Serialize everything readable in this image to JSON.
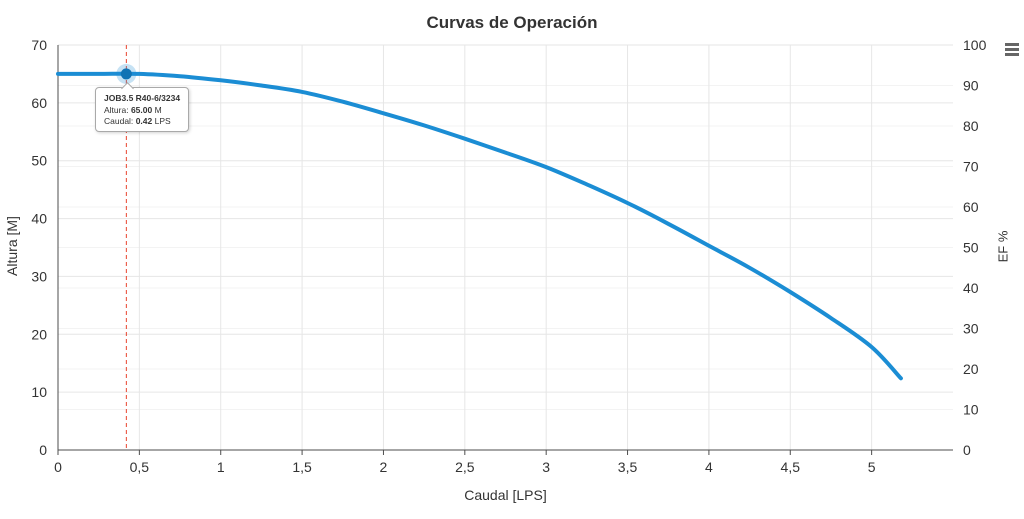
{
  "chart_data": {
    "type": "line",
    "title": "Curvas de Operación",
    "xlabel": "Caudal [LPS]",
    "ylabel": "Altura [M]",
    "ylabel_right": "EF %",
    "xlim": [
      0,
      5.5
    ],
    "ylim": [
      0,
      70
    ],
    "ylim_right": [
      0,
      100
    ],
    "grid": true,
    "legend": "none",
    "x_ticks": [
      {
        "value": 0,
        "label": "0"
      },
      {
        "value": 0.5,
        "label": "0,5"
      },
      {
        "value": 1,
        "label": "1"
      },
      {
        "value": 1.5,
        "label": "1,5"
      },
      {
        "value": 2,
        "label": "2"
      },
      {
        "value": 2.5,
        "label": "2,5"
      },
      {
        "value": 3,
        "label": "3"
      },
      {
        "value": 3.5,
        "label": "3,5"
      },
      {
        "value": 4,
        "label": "4"
      },
      {
        "value": 4.5,
        "label": "4,5"
      },
      {
        "value": 5,
        "label": "5"
      }
    ],
    "y_ticks": [
      {
        "value": 0,
        "label": "0"
      },
      {
        "value": 10,
        "label": "10"
      },
      {
        "value": 20,
        "label": "20"
      },
      {
        "value": 30,
        "label": "30"
      },
      {
        "value": 40,
        "label": "40"
      },
      {
        "value": 50,
        "label": "50"
      },
      {
        "value": 60,
        "label": "60"
      },
      {
        "value": 70,
        "label": "70"
      }
    ],
    "y_ticks_right": [
      {
        "value": 0,
        "label": "0"
      },
      {
        "value": 10,
        "label": "10"
      },
      {
        "value": 20,
        "label": "20"
      },
      {
        "value": 30,
        "label": "30"
      },
      {
        "value": 40,
        "label": "40"
      },
      {
        "value": 50,
        "label": "50"
      },
      {
        "value": 60,
        "label": "60"
      },
      {
        "value": 70,
        "label": "70"
      },
      {
        "value": 80,
        "label": "80"
      },
      {
        "value": 90,
        "label": "90"
      },
      {
        "value": 100,
        "label": "100"
      }
    ],
    "series": [
      {
        "name": "JOB3.5 R40-6/3234",
        "axis": "left",
        "color": "#1b8dd4",
        "line_width": 4,
        "points": [
          [
            0,
            65
          ],
          [
            0.25,
            65
          ],
          [
            0.5,
            65
          ],
          [
            0.75,
            64.6
          ],
          [
            1,
            63.9
          ],
          [
            1.25,
            63.0
          ],
          [
            1.5,
            61.9
          ],
          [
            1.75,
            60.2
          ],
          [
            2,
            58.2
          ],
          [
            2.25,
            56.1
          ],
          [
            2.5,
            53.8
          ],
          [
            2.75,
            51.4
          ],
          [
            3,
            48.9
          ],
          [
            3.25,
            45.9
          ],
          [
            3.5,
            42.7
          ],
          [
            3.75,
            39.1
          ],
          [
            4,
            35.3
          ],
          [
            4.25,
            31.5
          ],
          [
            4.5,
            27.3
          ],
          [
            4.75,
            22.8
          ],
          [
            5,
            17.8
          ],
          [
            5.18,
            12.4
          ]
        ]
      }
    ],
    "selected_point": {
      "series": "JOB3.5 R40-6/3234",
      "x": 0.42,
      "y": 65,
      "marker_color": "#1173b4",
      "halo_color": "rgba(27,141,212,0.25)"
    },
    "crosshair": {
      "x": 0.42,
      "color": "#e8432d",
      "style": "dashed"
    }
  },
  "tooltip": {
    "title": "JOB3.5 R40-6/3234",
    "rows": [
      {
        "label": "Altura:",
        "value": "65.00",
        "unit": "M"
      },
      {
        "label": "Caudal:",
        "value": "0.42",
        "unit": "LPS"
      }
    ]
  },
  "colors": {
    "series_blue": "#1b8dd4",
    "marker_blue": "#1173b4",
    "crosshair_red": "#e8432d",
    "grid_major": "#e6e6e6",
    "grid_minor": "#f3f3f3",
    "axis_line": "#4d4d4d",
    "tick_text": "#333333"
  },
  "context_menu": {
    "icon": "hamburger-icon"
  }
}
